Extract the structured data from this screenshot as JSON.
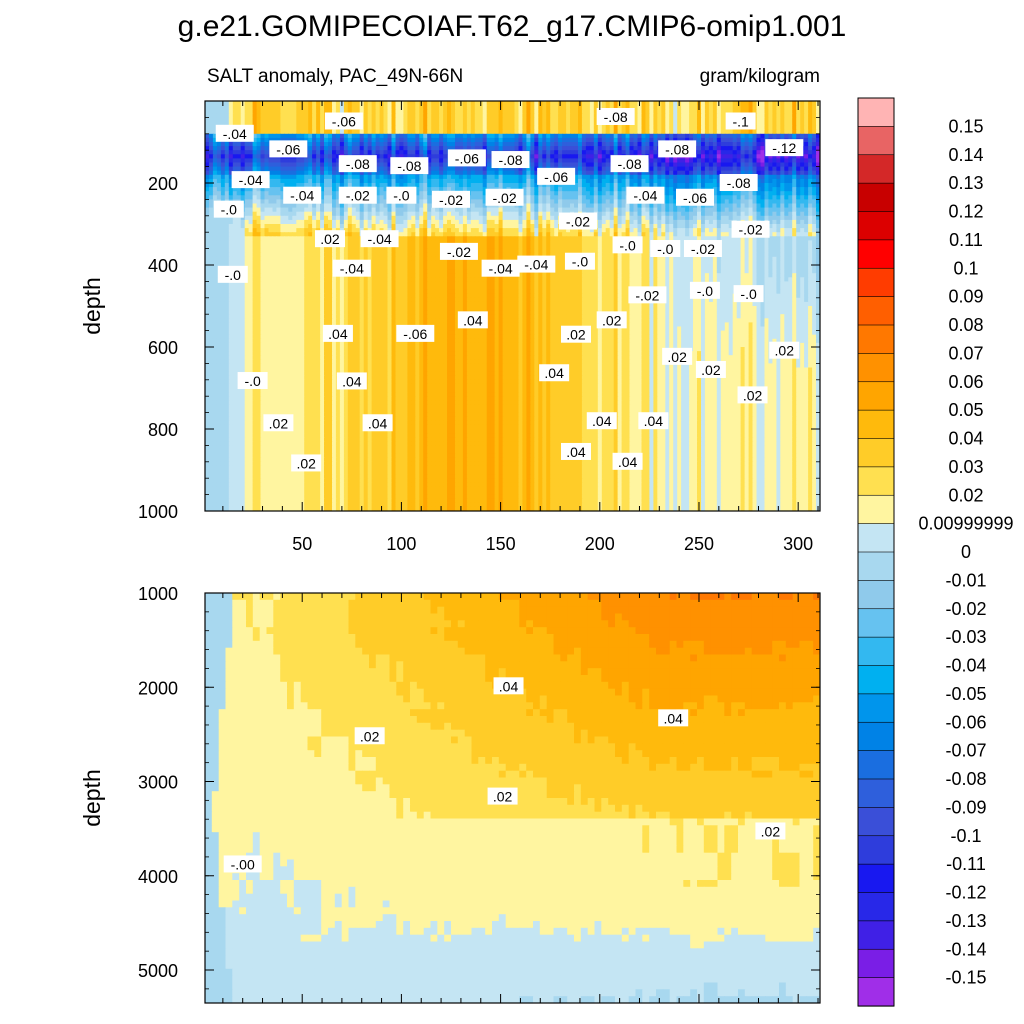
{
  "chart_data": {
    "type": "heatmap",
    "title": "g.e21.GOMIPECOIAF.T62_g17.CMIP6-omip1.001",
    "left_subtitle": "SALT anomaly, PAC_49N-66N",
    "right_subtitle": "gram/kilogram",
    "ylabel": "depth",
    "xlabel": "",
    "x_ticks": [
      "50",
      "100",
      "150",
      "200",
      "250",
      "300"
    ],
    "xlim": [
      1,
      311
    ],
    "panels": [
      {
        "name": "upper",
        "ylim": [
          0,
          1000
        ],
        "y_ticks": [
          "200",
          "400",
          "600",
          "800",
          "1000"
        ]
      },
      {
        "name": "lower",
        "ylim": [
          1000,
          5350
        ],
        "y_ticks": [
          "1000",
          "2000",
          "3000",
          "4000",
          "5000"
        ]
      }
    ],
    "colorbar": {
      "labels": [
        "0.15",
        "0.14",
        "0.13",
        "0.12",
        "0.11",
        "0.1",
        "0.09",
        "0.08",
        "0.07",
        "0.06",
        "0.05",
        "0.04",
        "0.03",
        "0.02",
        "0.00999999",
        "0",
        "-0.01",
        "-0.02",
        "-0.03",
        "-0.04",
        "-0.05",
        "-0.06",
        "-0.07",
        "-0.08",
        "-0.09",
        "-0.1",
        "-0.11",
        "-0.12",
        "-0.13",
        "-0.14",
        "-0.15"
      ],
      "colors": [
        "#ffb4b4",
        "#e86464",
        "#d42828",
        "#c80000",
        "#dc0000",
        "#ff0000",
        "#ff3c00",
        "#ff5f00",
        "#ff7800",
        "#ff9100",
        "#ffa500",
        "#ffba0c",
        "#ffcc28",
        "#ffe050",
        "#fff5a0",
        "#c4e5f3",
        "#a8d8ef",
        "#8fcaeb",
        "#66c2f0",
        "#33b8f0",
        "#00b0f0",
        "#0095ec",
        "#0082e6",
        "#1a6ee0",
        "#2e5fdc",
        "#3a4fd8",
        "#2e3ddc",
        "#1818f0",
        "#2828e8",
        "#4020e6",
        "#7a1ee6",
        "#a02ee8"
      ]
    },
    "contour_labels_upper": [
      {
        "x": 16,
        "y": 80,
        "t": "-.04"
      },
      {
        "x": 43,
        "y": 118,
        "t": "-.06"
      },
      {
        "x": 71,
        "y": 50,
        "t": "-.06"
      },
      {
        "x": 78,
        "y": 154,
        "t": "-.08"
      },
      {
        "x": 104,
        "y": 159,
        "t": "-.08"
      },
      {
        "x": 133,
        "y": 140,
        "t": "-.06"
      },
      {
        "x": 155,
        "y": 144,
        "t": "-.08"
      },
      {
        "x": 178,
        "y": 185,
        "t": "-.06"
      },
      {
        "x": 208,
        "y": 39,
        "t": "-.08"
      },
      {
        "x": 215,
        "y": 154,
        "t": "-.08"
      },
      {
        "x": 239,
        "y": 118,
        "t": "-.08"
      },
      {
        "x": 271,
        "y": 50,
        "t": "-.1"
      },
      {
        "x": 293,
        "y": 115,
        "t": "-.12"
      },
      {
        "x": 24,
        "y": 193,
        "t": "-.04"
      },
      {
        "x": 50,
        "y": 231,
        "t": "-.04"
      },
      {
        "x": 78,
        "y": 231,
        "t": "-.02"
      },
      {
        "x": 100,
        "y": 231,
        "t": "-.0"
      },
      {
        "x": 125,
        "y": 241,
        "t": "-.02"
      },
      {
        "x": 152,
        "y": 236,
        "t": "-.02"
      },
      {
        "x": 223,
        "y": 231,
        "t": "-.04"
      },
      {
        "x": 248,
        "y": 236,
        "t": "-.06"
      },
      {
        "x": 270,
        "y": 200,
        "t": "-.08"
      },
      {
        "x": 13,
        "y": 265,
        "t": "-.0"
      },
      {
        "x": 64,
        "y": 337,
        "t": ".02"
      },
      {
        "x": 89,
        "y": 337,
        "t": "-.04"
      },
      {
        "x": 129,
        "y": 368,
        "t": "-.02"
      },
      {
        "x": 189,
        "y": 294,
        "t": "-.02"
      },
      {
        "x": 214,
        "y": 352,
        "t": "-.0"
      },
      {
        "x": 233,
        "y": 361,
        "t": "-.0"
      },
      {
        "x": 252,
        "y": 361,
        "t": "-.02"
      },
      {
        "x": 276,
        "y": 314,
        "t": "-.02"
      },
      {
        "x": 15,
        "y": 424,
        "t": "-.0"
      },
      {
        "x": 75,
        "y": 409,
        "t": "-.04"
      },
      {
        "x": 150,
        "y": 409,
        "t": "-.04"
      },
      {
        "x": 168,
        "y": 399,
        "t": "-.04"
      },
      {
        "x": 190,
        "y": 392,
        "t": "-.0"
      },
      {
        "x": 224,
        "y": 474,
        "t": "-.02"
      },
      {
        "x": 253,
        "y": 463,
        "t": "-.0"
      },
      {
        "x": 275,
        "y": 471,
        "t": "-.0"
      },
      {
        "x": 68,
        "y": 568,
        "t": ".04"
      },
      {
        "x": 107,
        "y": 568,
        "t": "-.06"
      },
      {
        "x": 136,
        "y": 535,
        "t": ".04"
      },
      {
        "x": 188,
        "y": 570,
        "t": ".02"
      },
      {
        "x": 206,
        "y": 535,
        "t": ".02"
      },
      {
        "x": 25,
        "y": 683,
        "t": "-.0"
      },
      {
        "x": 75,
        "y": 684,
        "t": ".04"
      },
      {
        "x": 177,
        "y": 664,
        "t": ".04"
      },
      {
        "x": 239,
        "y": 624,
        "t": ".02"
      },
      {
        "x": 256,
        "y": 656,
        "t": ".02"
      },
      {
        "x": 293,
        "y": 609,
        "t": ".02"
      },
      {
        "x": 38,
        "y": 786,
        "t": ".02"
      },
      {
        "x": 88,
        "y": 786,
        "t": ".04"
      },
      {
        "x": 201,
        "y": 781,
        "t": ".04"
      },
      {
        "x": 227,
        "y": 781,
        "t": ".04"
      },
      {
        "x": 277,
        "y": 718,
        "t": ".02"
      },
      {
        "x": 188,
        "y": 856,
        "t": ".04"
      },
      {
        "x": 214,
        "y": 880,
        "t": ".04"
      },
      {
        "x": 52,
        "y": 884,
        "t": ".02"
      }
    ],
    "contour_labels_lower": [
      {
        "x": 154,
        "y": 1990,
        "t": ".04"
      },
      {
        "x": 237,
        "y": 2330,
        "t": ".04"
      },
      {
        "x": 84,
        "y": 2520,
        "t": ".02"
      },
      {
        "x": 151,
        "y": 3160,
        "t": ".02"
      },
      {
        "x": 286,
        "y": 3530,
        "t": ".02"
      },
      {
        "x": 20,
        "y": 3880,
        "t": "-.00"
      }
    ]
  }
}
